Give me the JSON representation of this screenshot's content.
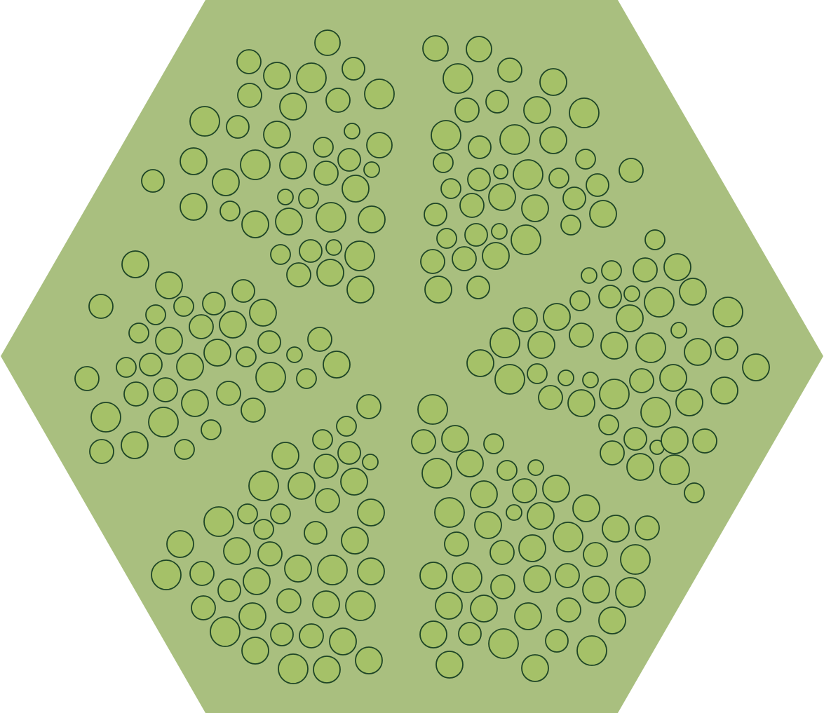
{
  "colors": {
    "hexagon_fill": "#a9bf7f",
    "circle_fill": "#a5c168",
    "circle_stroke": "#1e4526"
  },
  "pattern": {
    "shape": "hexagon",
    "sectors": 6,
    "element": "circle"
  }
}
